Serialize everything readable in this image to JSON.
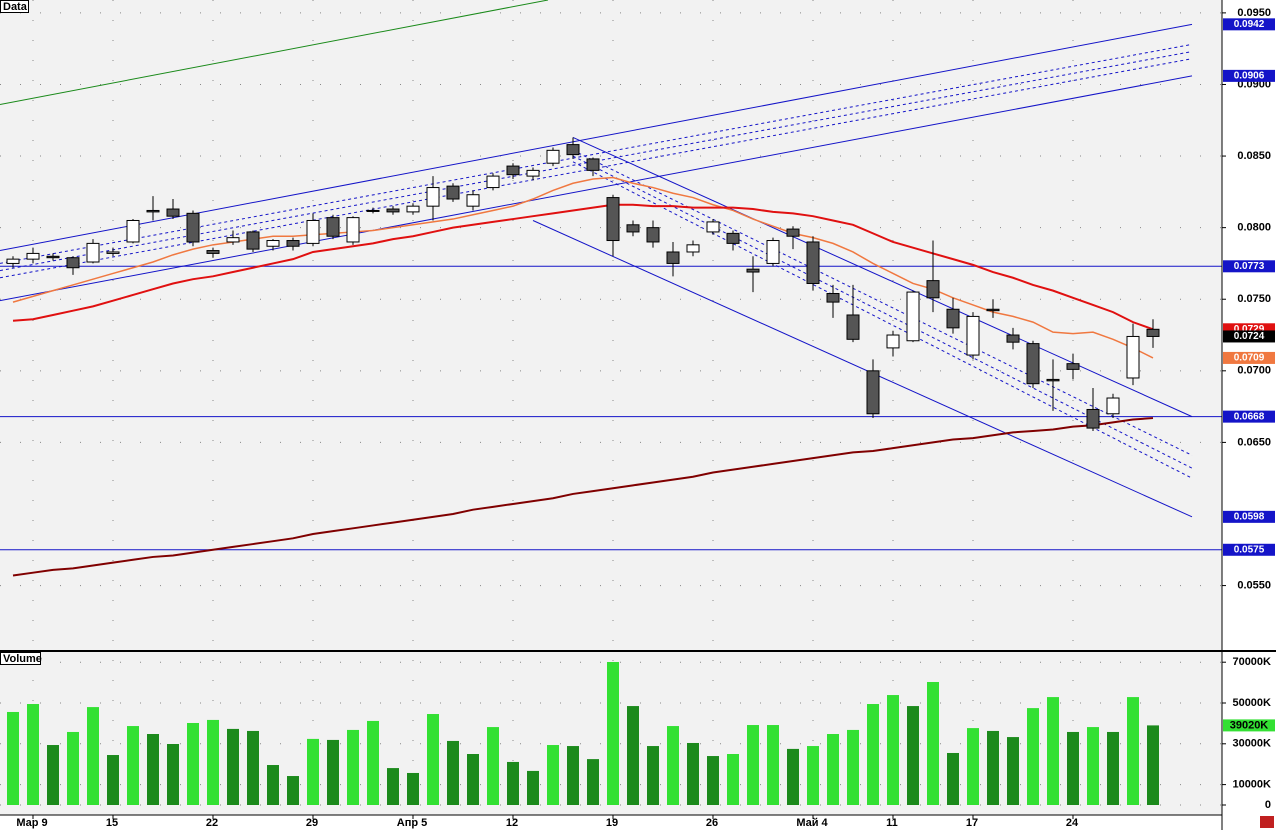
{
  "chart_data": [
    {
      "type": "candlestick",
      "title": "Data",
      "categories": [
        null,
        "Мар 9",
        null,
        null,
        null,
        "15",
        null,
        null,
        null,
        null,
        "22",
        null,
        null,
        null,
        null,
        "29",
        null,
        null,
        null,
        null,
        "Апр 5",
        null,
        null,
        null,
        null,
        "12",
        null,
        null,
        null,
        null,
        "19",
        null,
        null,
        null,
        null,
        "26",
        null,
        null,
        null,
        null,
        "Май 4",
        null,
        null,
        null,
        "11",
        null,
        null,
        null,
        "17",
        null,
        null,
        null,
        null,
        "24",
        null,
        null,
        null,
        null
      ],
      "open": [
        0.0775,
        0.0778,
        0.078,
        0.0779,
        0.0776,
        0.0782,
        0.079,
        0.0812,
        0.0813,
        0.081,
        0.0784,
        0.079,
        0.0797,
        0.0787,
        0.0791,
        0.0789,
        0.0807,
        0.079,
        0.0812,
        0.0813,
        0.0811,
        0.0815,
        0.0829,
        0.0815,
        0.0828,
        0.0843,
        0.0836,
        0.0845,
        0.0858,
        0.0848,
        0.0821,
        0.0802,
        0.08,
        0.0783,
        0.0783,
        0.0797,
        0.0796,
        0.0771,
        0.0775,
        0.0799,
        0.079,
        0.0754,
        0.0739,
        0.07,
        0.0716,
        0.0721,
        0.0763,
        0.0743,
        0.0711,
        0.0743,
        0.0725,
        0.0719,
        0.0694,
        0.0705,
        0.0673,
        0.067,
        0.0695,
        0.0729
      ],
      "high": [
        0.078,
        0.0786,
        0.0782,
        0.078,
        0.0792,
        0.0786,
        0.0806,
        0.0822,
        0.082,
        0.0812,
        0.0786,
        0.0798,
        0.0798,
        0.0792,
        0.0793,
        0.081,
        0.0809,
        0.0808,
        0.0814,
        0.0815,
        0.0817,
        0.0836,
        0.0831,
        0.0826,
        0.0838,
        0.0845,
        0.0842,
        0.0856,
        0.0863,
        0.0849,
        0.0823,
        0.0805,
        0.0805,
        0.079,
        0.0791,
        0.0806,
        0.0798,
        0.078,
        0.0793,
        0.0801,
        0.0794,
        0.076,
        0.076,
        0.0708,
        0.0728,
        0.0756,
        0.0791,
        0.0751,
        0.0741,
        0.075,
        0.073,
        0.0721,
        0.0708,
        0.0712,
        0.0688,
        0.0684,
        0.0733,
        0.0736
      ],
      "low": [
        0.0772,
        0.0775,
        0.0777,
        0.0767,
        0.0775,
        0.078,
        0.0789,
        0.0805,
        0.0806,
        0.0787,
        0.0779,
        0.0788,
        0.0783,
        0.0784,
        0.0784,
        0.0787,
        0.0792,
        0.0788,
        0.081,
        0.0809,
        0.0809,
        0.0805,
        0.0818,
        0.0812,
        0.0826,
        0.0834,
        0.0833,
        0.0843,
        0.0848,
        0.0836,
        0.078,
        0.0794,
        0.0786,
        0.0766,
        0.078,
        0.0795,
        0.0784,
        0.0755,
        0.0773,
        0.0785,
        0.0756,
        0.0737,
        0.072,
        0.0667,
        0.071,
        0.072,
        0.0741,
        0.0726,
        0.0708,
        0.0737,
        0.0715,
        0.0688,
        0.0672,
        0.0694,
        0.0658,
        0.0667,
        0.069,
        0.0716
      ],
      "close": [
        0.0778,
        0.0782,
        0.0779,
        0.0772,
        0.0789,
        0.0783,
        0.0805,
        0.0811,
        0.0808,
        0.079,
        0.0782,
        0.0793,
        0.0785,
        0.0791,
        0.0787,
        0.0805,
        0.0794,
        0.0807,
        0.0812,
        0.0811,
        0.0815,
        0.0828,
        0.082,
        0.0823,
        0.0836,
        0.0837,
        0.084,
        0.0854,
        0.0851,
        0.084,
        0.0791,
        0.0797,
        0.079,
        0.0775,
        0.0788,
        0.0804,
        0.0789,
        0.0769,
        0.0791,
        0.0794,
        0.0761,
        0.0748,
        0.0722,
        0.067,
        0.0725,
        0.0755,
        0.0751,
        0.073,
        0.0738,
        0.0742,
        0.072,
        0.0691,
        0.0693,
        0.0701,
        0.066,
        0.0681,
        0.0724,
        0.0724
      ],
      "up_color": "#ffffff",
      "down_color": "#555555",
      "series": [
        {
          "color": "#f07840",
          "values": [
            0.0748,
            0.0752,
            0.0756,
            0.076,
            0.0764,
            0.0768,
            0.0772,
            0.0776,
            0.0781,
            0.0785,
            0.0788,
            0.079,
            0.0792,
            0.0794,
            0.0794,
            0.0795,
            0.0796,
            0.0797,
            0.0798,
            0.08,
            0.0802,
            0.0804,
            0.0806,
            0.0809,
            0.0812,
            0.0815,
            0.082,
            0.0826,
            0.0831,
            0.0834,
            0.0835,
            0.0831,
            0.0828,
            0.0824,
            0.0821,
            0.0816,
            0.0812,
            0.0806,
            0.0801,
            0.0796,
            0.0793,
            0.0789,
            0.0783,
            0.0775,
            0.0768,
            0.0761,
            0.0757,
            0.0751,
            0.0746,
            0.0741,
            0.0738,
            0.0734,
            0.0727,
            0.0726,
            0.0727,
            0.0722,
            0.0716,
            0.0709
          ]
        },
        {
          "color": "#e01010",
          "values": [
            0.0735,
            0.0736,
            0.0739,
            0.0742,
            0.0745,
            0.0749,
            0.0753,
            0.0757,
            0.0761,
            0.0764,
            0.0766,
            0.0769,
            0.0772,
            0.0775,
            0.0778,
            0.0783,
            0.0785,
            0.0787,
            0.0789,
            0.0792,
            0.0794,
            0.0797,
            0.08,
            0.0802,
            0.0804,
            0.0806,
            0.0808,
            0.081,
            0.0812,
            0.0814,
            0.0816,
            0.0816,
            0.0815,
            0.0815,
            0.0814,
            0.0814,
            0.0814,
            0.0813,
            0.0811,
            0.081,
            0.0808,
            0.0805,
            0.0802,
            0.0796,
            0.079,
            0.0786,
            0.0782,
            0.0778,
            0.0774,
            0.0769,
            0.0765,
            0.076,
            0.0756,
            0.0751,
            0.0746,
            0.0741,
            0.0734,
            0.0729
          ]
        },
        {
          "color": "#800000",
          "values": [
            0.0557,
            0.0559,
            0.0561,
            0.0562,
            0.0564,
            0.0566,
            0.0568,
            0.057,
            0.0571,
            0.0573,
            0.0575,
            0.0577,
            0.0579,
            0.0581,
            0.0583,
            0.0586,
            0.0588,
            0.059,
            0.0592,
            0.0594,
            0.0596,
            0.0598,
            0.06,
            0.0603,
            0.0605,
            0.0607,
            0.0609,
            0.0611,
            0.0614,
            0.0616,
            0.0618,
            0.062,
            0.0622,
            0.0624,
            0.0626,
            0.0629,
            0.0631,
            0.0633,
            0.0635,
            0.0637,
            0.0639,
            0.0641,
            0.0643,
            0.0644,
            0.0646,
            0.0648,
            0.065,
            0.0652,
            0.0653,
            0.0655,
            0.0657,
            0.0658,
            0.0659,
            0.0661,
            0.0662,
            0.0664,
            0.0666,
            0.0667
          ]
        }
      ],
      "trendlines": [
        {
          "x": [
            -0.65,
            26.75
          ],
          "values": [
            0.0886,
            0.0959
          ],
          "color": "#1a8a1a",
          "dashed": false
        },
        {
          "x": [
            -0.65,
            58.95
          ],
          "values": [
            0.0784,
            0.0942
          ],
          "color": "#1414c8",
          "dashed": false
        },
        {
          "x": [
            -0.65,
            58.95
          ],
          "values": [
            0.0749,
            0.0906
          ],
          "color": "#1414c8",
          "dashed": false
        },
        {
          "x": [
            -0.65,
            58.95
          ],
          "values": [
            0.0775,
            0.0928
          ],
          "color": "#1414c8",
          "dashed": true
        },
        {
          "x": [
            -0.65,
            58.95
          ],
          "values": [
            0.077,
            0.0923
          ],
          "color": "#1414c8",
          "dashed": true
        },
        {
          "x": [
            -0.65,
            58.95
          ],
          "values": [
            0.0765,
            0.0918
          ],
          "color": "#1414c8",
          "dashed": true
        },
        {
          "x": [
            28,
            58.95
          ],
          "values": [
            0.0863,
            0.0668
          ],
          "color": "#1414c8",
          "dashed": false
        },
        {
          "x": [
            26,
            58.95
          ],
          "values": [
            0.0805,
            0.0598
          ],
          "color": "#1414c8",
          "dashed": false
        },
        {
          "x": [
            28,
            58.95
          ],
          "values": [
            0.0854,
            0.0641
          ],
          "color": "#1414c8",
          "dashed": true
        },
        {
          "x": [
            28,
            58.95
          ],
          "values": [
            0.085,
            0.0632
          ],
          "color": "#1414c8",
          "dashed": true
        },
        {
          "x": [
            28,
            58.95
          ],
          "values": [
            0.0846,
            0.0625
          ],
          "color": "#1414c8",
          "dashed": true
        }
      ],
      "levels": [
        {
          "value": 0.0773,
          "label": "0.0773",
          "color": "#1414c8"
        },
        {
          "value": 0.0668,
          "label": "0.0668",
          "color": "#1414c8"
        },
        {
          "value": 0.0575,
          "label": "0.0575",
          "color": "#1414c8"
        }
      ],
      "price_labels": [
        {
          "value": 0.0942,
          "label": "0.0942",
          "color": "#1414c8"
        },
        {
          "value": 0.0906,
          "label": "0.0906",
          "color": "#1414c8"
        },
        {
          "value": 0.0729,
          "label": "0.0729",
          "color": "#e01010"
        },
        {
          "value": 0.0724,
          "label": "0.0724",
          "color": "#000000"
        },
        {
          "value": 0.0709,
          "label": "0.0709",
          "color": "#f07840"
        },
        {
          "value": 0.0598,
          "label": "0.0598",
          "color": "#1414c8"
        }
      ],
      "ylim": [
        0.0505,
        0.0959
      ],
      "yticks": [
        {
          "value": 0.095,
          "label": "0.0950"
        },
        {
          "value": 0.09,
          "label": "0.0900"
        },
        {
          "value": 0.085,
          "label": "0.0850"
        },
        {
          "value": 0.08,
          "label": "0.0800"
        },
        {
          "value": 0.075,
          "label": "0.0750"
        },
        {
          "value": 0.07,
          "label": "0.0700"
        },
        {
          "value": 0.065,
          "label": "0.0650"
        },
        {
          "value": 0.055,
          "label": "0.0550"
        }
      ],
      "grid": true
    },
    {
      "type": "bar",
      "title": "Volume",
      "values": [
        45600,
        49500,
        29400,
        35800,
        48000,
        24500,
        38700,
        34800,
        29900,
        40200,
        41700,
        37300,
        36300,
        19600,
        14200,
        32400,
        31900,
        36800,
        41200,
        18100,
        15700,
        44600,
        31400,
        25000,
        38200,
        21100,
        16700,
        29400,
        28900,
        22500,
        70100,
        48500,
        28900,
        38700,
        30400,
        24000,
        25000,
        39200,
        39200,
        27500,
        28900,
        34800,
        36800,
        49500,
        53900,
        48500,
        60300,
        25500,
        37700,
        36300,
        33300,
        47500,
        52900,
        35800,
        38200,
        35800,
        52900,
        39020
      ],
      "up_color": "#33e033",
      "down_color": "#1c8a1c",
      "last_label": {
        "value": 39020,
        "label": "39020K",
        "color": "#33e033"
      },
      "ylim": [
        0,
        75000
      ],
      "yticks": [
        {
          "value": 70000,
          "label": "70000K"
        },
        {
          "value": 50000,
          "label": "50000K"
        },
        {
          "value": 30000,
          "label": "30000K"
        },
        {
          "value": 10000,
          "label": "10000K"
        },
        0
      ],
      "grid": true
    }
  ]
}
